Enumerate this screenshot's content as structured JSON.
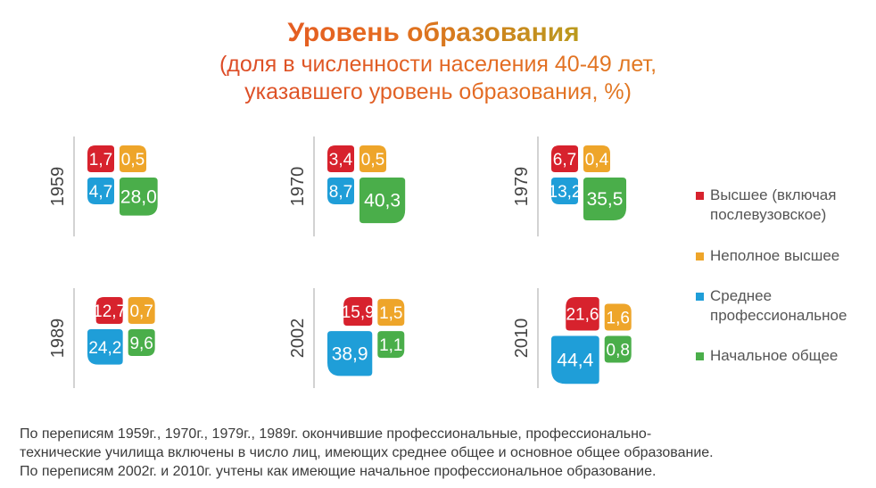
{
  "header": {
    "title": "Уровень образования",
    "subtitle_line1": "(доля в численности населения 40-49 лет,",
    "subtitle_line2": "указавшего уровень образования, %)"
  },
  "colors": {
    "higher": "#d7222d",
    "incomplete_higher": "#eea52a",
    "secondary_professional": "#1f9ed8",
    "primary_general": "#4aae4a"
  },
  "legend": {
    "items": [
      {
        "key": "higher",
        "label": "Высшее (включая\nпослевузовское)"
      },
      {
        "key": "incomplete_higher",
        "label": "Неполное высшее"
      },
      {
        "key": "secondary_professional",
        "label": "Среднее\nпрофессиональное"
      },
      {
        "key": "primary_general",
        "label": "Начальное общее"
      }
    ]
  },
  "chart_data": {
    "type": "proportional-area",
    "series_order": [
      "higher",
      "incomplete_higher",
      "secondary_professional",
      "primary_general"
    ],
    "panels": [
      {
        "year": "1959",
        "values": {
          "higher": 1.7,
          "incomplete_higher": 0.5,
          "secondary_professional": 4.7,
          "primary_general": 28.0
        },
        "labels": {
          "higher": "1,7",
          "incomplete_higher": "0,5",
          "secondary_professional": "4,7",
          "primary_general": "28,0"
        }
      },
      {
        "year": "1970",
        "values": {
          "higher": 3.4,
          "incomplete_higher": 0.5,
          "secondary_professional": 8.7,
          "primary_general": 40.3
        },
        "labels": {
          "higher": "3,4",
          "incomplete_higher": "0,5",
          "secondary_professional": "8,7",
          "primary_general": "40,3"
        }
      },
      {
        "year": "1979",
        "values": {
          "higher": 6.7,
          "incomplete_higher": 0.4,
          "secondary_professional": 13.2,
          "primary_general": 35.5
        },
        "labels": {
          "higher": "6,7",
          "incomplete_higher": "0,4",
          "secondary_professional": "13,2",
          "primary_general": "35,5"
        }
      },
      {
        "year": "1989",
        "values": {
          "higher": 12.7,
          "incomplete_higher": 0.7,
          "secondary_professional": 24.2,
          "primary_general": 9.6
        },
        "labels": {
          "higher": "12,7",
          "incomplete_higher": "0,7",
          "secondary_professional": "24,2",
          "primary_general": "9,6"
        }
      },
      {
        "year": "2002",
        "values": {
          "higher": 15.9,
          "incomplete_higher": 1.5,
          "secondary_professional": 38.9,
          "primary_general": 1.1
        },
        "labels": {
          "higher": "15,9",
          "incomplete_higher": "1,5",
          "secondary_professional": "38,9",
          "primary_general": "1,1"
        }
      },
      {
        "year": "2010",
        "values": {
          "higher": 21.6,
          "incomplete_higher": 1.6,
          "secondary_professional": 44.4,
          "primary_general": 0.8
        },
        "labels": {
          "higher": "21,6",
          "incomplete_higher": "1,6",
          "secondary_professional": "44,4",
          "primary_general": "0,8"
        }
      }
    ]
  },
  "footnote": {
    "line1": "По переписям 1959г., 1970г., 1979г., 1989г. окончившие профессиональные, профессионально-",
    "line2": "технические училища  включены в число лиц,  имеющих  среднее общее и  основное общее образование.",
    "line3": "По переписям 2002г. и 2010г. учтены как имеющие  начальное профессиональное образование."
  }
}
